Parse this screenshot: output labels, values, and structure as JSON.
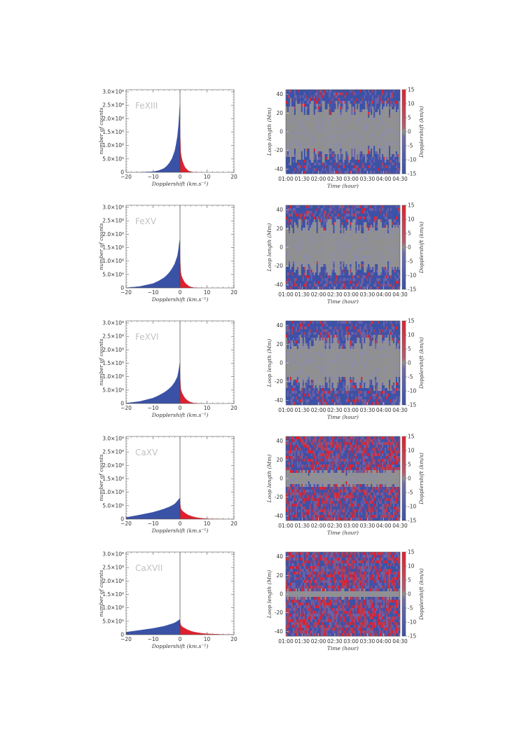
{
  "colors": {
    "blueshift": "#3a52a6",
    "redshift": "#e0202e",
    "neutral": "#909090",
    "axis": "#555555"
  },
  "chart_data": [
    {
      "type": "area",
      "panel": "histogram",
      "label": "FeXIII",
      "xlabel": "Dopplershift (km.s⁻¹)",
      "ylabel": "number of counts",
      "xlim": [
        -20,
        20
      ],
      "ylim": [
        0,
        3000000
      ],
      "x": [
        -20,
        -15,
        -10,
        -8,
        -6,
        -5,
        -4,
        -3,
        -2,
        -1.5,
        -1,
        -0.6,
        -0.3,
        -0.1,
        0,
        0.3,
        0.6,
        1,
        1.5,
        2,
        3,
        4,
        5,
        6,
        8,
        10,
        15,
        20
      ],
      "y": [
        0,
        5000,
        30000,
        70000,
        150000,
        230000,
        350000,
        520000,
        800000,
        1050000,
        1350000,
        1750000,
        2200000,
        2600000,
        1700000,
        750000,
        550000,
        400000,
        270000,
        170000,
        70000,
        25000,
        10000,
        4000,
        1000,
        0,
        0,
        0
      ]
    },
    {
      "type": "heatmap",
      "panel": "dopplergram",
      "xlabel": "Time (hour)",
      "ylabel": "Loop length (Mm)",
      "colorbar_label": "Dopplershift (km/s)",
      "x_ticks": [
        "01:00",
        "01:30",
        "02:00",
        "02:30",
        "03:00",
        "03:30",
        "04:00",
        "04:30"
      ],
      "y_ticks": [
        -40,
        -20,
        0,
        20,
        40
      ],
      "colorbar_ticks": [
        -15,
        -10,
        -5,
        0,
        5,
        10,
        15
      ],
      "ylim": [
        -45,
        45
      ],
      "clim": [
        -15,
        15
      ]
    },
    {
      "type": "area",
      "panel": "histogram",
      "label": "FeXV",
      "xlabel": "Dopplershift (km.s⁻¹)",
      "ylabel": "number of counts",
      "xlim": [
        -20,
        20
      ],
      "ylim": [
        0,
        3000000
      ],
      "x": [
        -20,
        -15,
        -10,
        -8,
        -6,
        -5,
        -4,
        -3,
        -2,
        -1.5,
        -1,
        -0.6,
        -0.3,
        -0.1,
        0,
        0.3,
        0.6,
        1,
        1.5,
        2,
        3,
        4,
        5,
        6,
        8,
        10,
        15,
        20
      ],
      "y": [
        10000,
        60000,
        170000,
        260000,
        380000,
        470000,
        580000,
        720000,
        900000,
        1050000,
        1200000,
        1450000,
        1700000,
        1800000,
        1250000,
        600000,
        450000,
        350000,
        250000,
        180000,
        90000,
        40000,
        18000,
        8000,
        2000,
        0,
        0,
        0
      ]
    },
    {
      "type": "heatmap",
      "panel": "dopplergram",
      "xlabel": "Time (hour)",
      "ylabel": "Loop length (Mm)",
      "colorbar_label": "Dopplershift (km/s)",
      "x_ticks": [
        "01:00",
        "01:30",
        "02:00",
        "02:30",
        "03:00",
        "03:30",
        "04:00",
        "04:30"
      ],
      "y_ticks": [
        -40,
        -20,
        0,
        20,
        40
      ],
      "colorbar_ticks": [
        -15,
        -10,
        -5,
        0,
        5,
        10,
        15
      ],
      "ylim": [
        -45,
        45
      ],
      "clim": [
        -15,
        15
      ]
    },
    {
      "type": "area",
      "panel": "histogram",
      "label": "FeXVI",
      "xlabel": "Dopplershift (km.s⁻¹)",
      "ylabel": "number of counts",
      "xlim": [
        -20,
        20
      ],
      "ylim": [
        0,
        3000000
      ],
      "x": [
        -20,
        -15,
        -10,
        -8,
        -6,
        -5,
        -4,
        -3,
        -2,
        -1.5,
        -1,
        -0.6,
        -0.3,
        -0.1,
        0,
        0.3,
        0.6,
        1,
        1.5,
        2,
        3,
        4,
        5,
        6,
        8,
        10,
        15,
        20
      ],
      "y": [
        20000,
        80000,
        210000,
        300000,
        410000,
        480000,
        560000,
        660000,
        800000,
        900000,
        1000000,
        1200000,
        1400000,
        1550000,
        1150000,
        550000,
        440000,
        350000,
        260000,
        190000,
        100000,
        50000,
        25000,
        12000,
        3000,
        0,
        0,
        0
      ]
    },
    {
      "type": "heatmap",
      "panel": "dopplergram",
      "xlabel": "Time (hour)",
      "ylabel": "Loop length (Mm)",
      "colorbar_label": "Dopplershift (km/s)",
      "x_ticks": [
        "01:00",
        "01:30",
        "02:00",
        "02:30",
        "03:00",
        "03:30",
        "04:00",
        "04:30"
      ],
      "y_ticks": [
        -40,
        -20,
        0,
        20,
        40
      ],
      "colorbar_ticks": [
        -15,
        -10,
        -5,
        0,
        5,
        10,
        15
      ],
      "ylim": [
        -45,
        45
      ],
      "clim": [
        -15,
        15
      ]
    },
    {
      "type": "area",
      "panel": "histogram",
      "label": "CaXV",
      "xlabel": "Dopplershift (km.s⁻¹)",
      "ylabel": "number of counts",
      "xlim": [
        -20,
        20
      ],
      "ylim": [
        0,
        3000000
      ],
      "x": [
        -20,
        -15,
        -10,
        -8,
        -6,
        -5,
        -4,
        -3,
        -2,
        -1.5,
        -1,
        -0.6,
        -0.3,
        -0.1,
        0,
        0.3,
        0.6,
        1,
        1.5,
        2,
        3,
        4,
        5,
        6,
        8,
        10,
        15,
        20
      ],
      "y": [
        70000,
        160000,
        260000,
        320000,
        380000,
        420000,
        460000,
        510000,
        570000,
        620000,
        680000,
        730000,
        770000,
        790000,
        690000,
        400000,
        350000,
        300000,
        260000,
        220000,
        160000,
        120000,
        90000,
        65000,
        35000,
        20000,
        5000,
        0
      ]
    },
    {
      "type": "heatmap",
      "panel": "dopplergram",
      "xlabel": "Time (hour)",
      "ylabel": "Loop length (Mm)",
      "colorbar_label": "Dopplershift (km/s)",
      "x_ticks": [
        "01:00",
        "01:30",
        "02:00",
        "02:30",
        "03:00",
        "03:30",
        "04:00",
        "04:30"
      ],
      "y_ticks": [
        -40,
        -20,
        0,
        20,
        40
      ],
      "colorbar_ticks": [
        -15,
        -10,
        -5,
        0,
        5,
        10,
        15
      ],
      "ylim": [
        -45,
        45
      ],
      "clim": [
        -15,
        15
      ]
    },
    {
      "type": "area",
      "panel": "histogram",
      "label": "CaXVII",
      "xlabel": "Dopplershift (km.s⁻¹)",
      "ylabel": "number of counts",
      "xlim": [
        -20,
        20
      ],
      "ylim": [
        0,
        3000000
      ],
      "x": [
        -20,
        -15,
        -10,
        -8,
        -6,
        -5,
        -4,
        -3,
        -2,
        -1.5,
        -1,
        -0.6,
        -0.3,
        -0.1,
        0,
        0.3,
        0.6,
        1,
        1.5,
        2,
        3,
        4,
        5,
        6,
        8,
        10,
        15,
        20
      ],
      "y": [
        100000,
        170000,
        240000,
        280000,
        320000,
        350000,
        380000,
        410000,
        450000,
        480000,
        510000,
        540000,
        560000,
        570000,
        520000,
        370000,
        330000,
        290000,
        260000,
        230000,
        180000,
        140000,
        110000,
        90000,
        60000,
        40000,
        15000,
        5000
      ]
    },
    {
      "type": "heatmap",
      "panel": "dopplergram",
      "xlabel": "Time (hour)",
      "ylabel": "Loop length (Mm)",
      "colorbar_label": "Dopplershift (km/s)",
      "x_ticks": [
        "01:00",
        "01:30",
        "02:00",
        "02:30",
        "03:00",
        "03:30",
        "04:00",
        "04:30"
      ],
      "y_ticks": [
        -40,
        -20,
        0,
        20,
        40
      ],
      "colorbar_ticks": [
        -15,
        -10,
        -5,
        0,
        5,
        10,
        15
      ],
      "ylim": [
        -45,
        45
      ],
      "clim": [
        -15,
        15
      ]
    }
  ],
  "y_tick_labels": [
    "0",
    "5.0×10⁵",
    "1.0×10⁶",
    "1.5×10⁶",
    "2.0×10⁶",
    "2.5×10⁶",
    "3.0×10⁶"
  ],
  "x_tick_labels": [
    "−20",
    "−10",
    "0",
    "10",
    "20"
  ]
}
